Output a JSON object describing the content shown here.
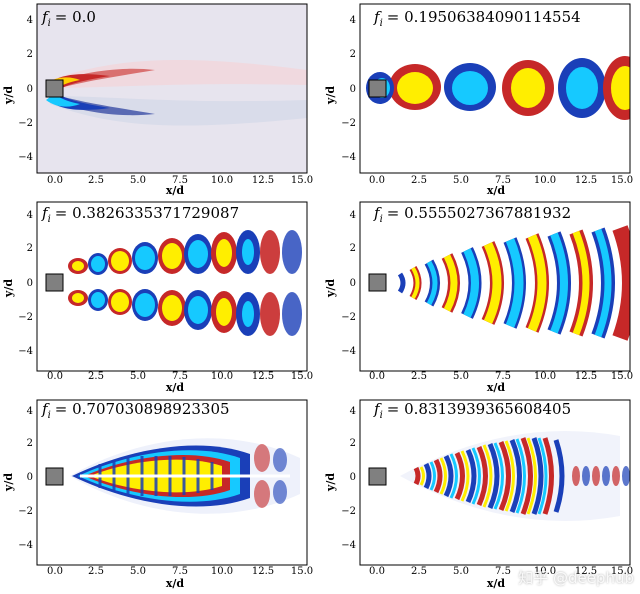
{
  "figure": {
    "xlabel": "x/d",
    "ylabel": "y/d",
    "xticks": [
      "0.0",
      "2.5",
      "5.0",
      "7.5",
      "10.0",
      "12.5",
      "15.0"
    ],
    "yticks": [
      "4",
      "2",
      "0",
      "−2",
      "−4"
    ],
    "panels": [
      {
        "symbol": "f",
        "subscript": "i",
        "value_text": "= 0.0"
      },
      {
        "symbol": "f",
        "subscript": "i",
        "value_text": "= 0.19506384090114554"
      },
      {
        "symbol": "f",
        "subscript": "i",
        "value_text": "= 0.3826335371729087"
      },
      {
        "symbol": "f",
        "subscript": "i",
        "value_text": "= 0.5555027367881932"
      },
      {
        "symbol": "f",
        "subscript": "i",
        "value_text": "= 0.707030898923305"
      },
      {
        "symbol": "f",
        "subscript": "i",
        "value_text": "= 0.8313939365608405"
      }
    ],
    "colors": {
      "red": "#c62828",
      "yellow": "#ffee00",
      "cyan": "#16c9ff",
      "blue": "#1a3fb8",
      "cylinder": "#808080"
    }
  },
  "watermark": {
    "text": "知乎 @deephub"
  }
}
